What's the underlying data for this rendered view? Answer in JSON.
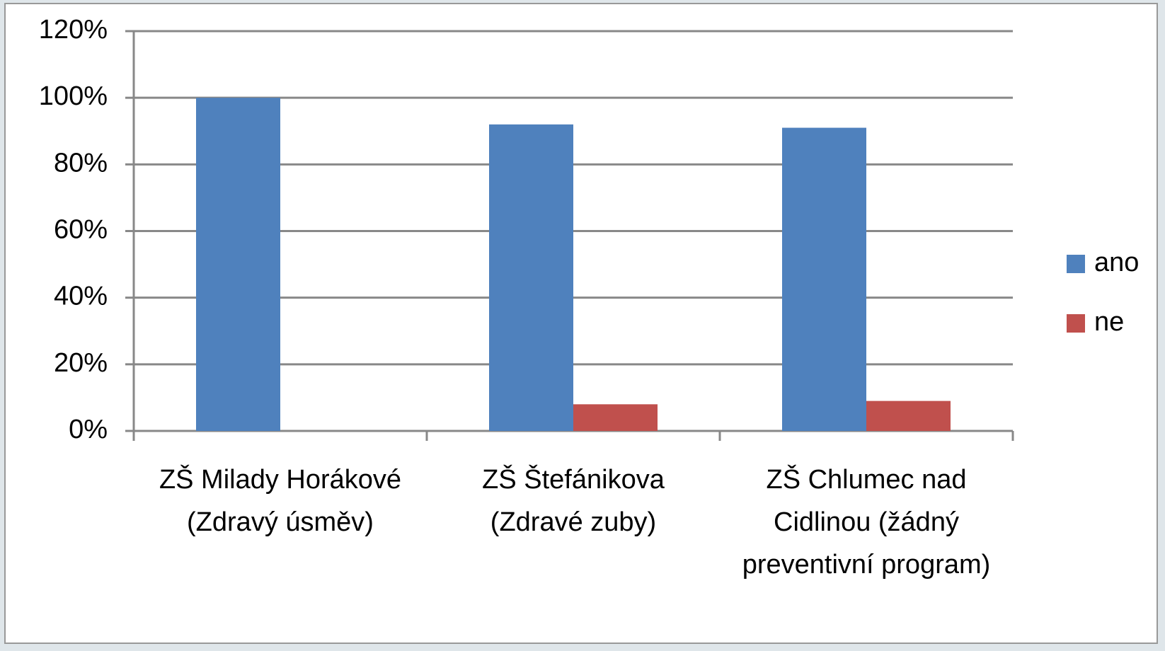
{
  "chart_data": {
    "type": "bar",
    "categories": [
      "ZŠ Milady Horákové (Zdravý úsměv)",
      "ZŠ Štefánikova (Zdravé zuby)",
      "ZŠ Chlumec nad Cidlinou (žádný preventivní program)"
    ],
    "series": [
      {
        "name": "ano",
        "color": "#4f81bd",
        "values": [
          100,
          92,
          91
        ]
      },
      {
        "name": "ne",
        "color": "#c0504d",
        "values": [
          0,
          8,
          9
        ]
      }
    ],
    "ylim": [
      0,
      120
    ],
    "yticks": [
      {
        "value": 0,
        "label": "0%"
      },
      {
        "value": 20,
        "label": "20%"
      },
      {
        "value": 40,
        "label": "40%"
      },
      {
        "value": 60,
        "label": "60%"
      },
      {
        "value": 80,
        "label": "80%"
      },
      {
        "value": 100,
        "label": "100%"
      },
      {
        "value": 120,
        "label": "120%"
      }
    ],
    "grid": true,
    "legend": "right"
  }
}
